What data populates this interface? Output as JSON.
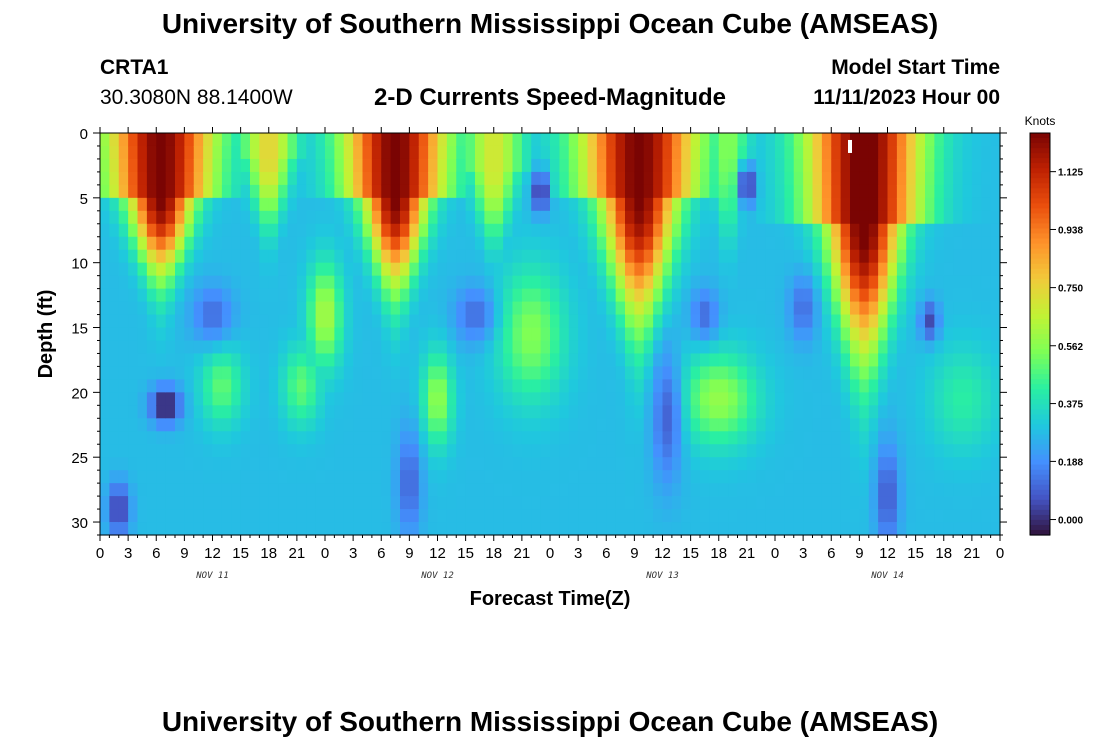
{
  "header": {
    "title": "University of Southern Mississippi Ocean Cube (AMSEAS)",
    "station": "CRTA1",
    "coords": "30.3080N  88.1400W",
    "subtitle": "2-D Currents Speed-Magnitude",
    "model_label": "Model Start Time",
    "model_date": "11/11/2023 Hour 00"
  },
  "footer": {
    "title": "University of Southern Mississippi Ocean Cube (AMSEAS)"
  },
  "colors": {
    "colormap": [
      "#30123b",
      "#4454c4",
      "#4490fe",
      "#1fc8de",
      "#29efa2",
      "#7dff56",
      "#c1f334",
      "#f1ca3a",
      "#fe922a",
      "#ea4f0d",
      "#be2102",
      "#7a0403"
    ]
  },
  "chart_data": {
    "type": "heatmap",
    "title": "2-D Currents Speed-Magnitude",
    "xlabel": "Forecast Time(Z)",
    "ylabel": "Depth (ft)",
    "xlim": [
      0,
      96
    ],
    "ylim": [
      0,
      31
    ],
    "x_tick_labels": [
      "0",
      "3",
      "6",
      "9",
      "12",
      "15",
      "18",
      "21",
      "0",
      "3",
      "6",
      "9",
      "12",
      "15",
      "18",
      "21",
      "0",
      "3",
      "6",
      "9",
      "12",
      "15",
      "18",
      "21",
      "0",
      "3",
      "6",
      "9",
      "12",
      "15",
      "18",
      "21",
      "0"
    ],
    "day_labels": [
      "NOV 11",
      "NOV 12",
      "NOV 13",
      "NOV 14"
    ],
    "y_ticks": [
      0,
      5,
      10,
      15,
      20,
      25,
      30
    ],
    "colorbar": {
      "unit": "Knots",
      "range": [
        -0.05,
        1.25
      ],
      "tick_values": [
        0.0,
        0.188,
        0.375,
        0.562,
        0.75,
        0.938,
        1.125
      ],
      "tick_labels": [
        "0.000",
        "0.188",
        "0.375",
        "0.562",
        "0.750",
        "0.938",
        "1.125"
      ]
    },
    "description_of_field": "Surface currents strong (>1.1 kn) near hours 4-9, 28-34, 52-58, 78-84; decay with depth into cone shapes; mid-depth maxima near 20 ft between surface peaks.",
    "field_spec": {
      "surface_peaks": [
        {
          "t": 6.5,
          "a": 1.25,
          "w": 4.6,
          "shallow": 5,
          "deep": 12,
          "widen": 1.6
        },
        {
          "t": 31.5,
          "a": 1.25,
          "w": 4.4,
          "shallow": 5,
          "deep": 13,
          "widen": 1.6
        },
        {
          "t": 57.5,
          "a": 1.25,
          "w": 5.0,
          "shallow": 5,
          "deep": 16,
          "widen": 1.6
        },
        {
          "t": 81.5,
          "a": 1.28,
          "w": 5.0,
          "shallow": 7,
          "deep": 19,
          "widen": 1.5
        },
        {
          "t": 18,
          "a": 0.75,
          "w": 2.8,
          "shallow": 2,
          "deep": 8,
          "widen": 1.0
        },
        {
          "t": 42,
          "a": 0.7,
          "w": 3.0,
          "shallow": 3,
          "deep": 9,
          "widen": 1.0
        },
        {
          "t": 67,
          "a": 0.55,
          "w": 2.2,
          "shallow": 2,
          "deep": 9,
          "widen": 1.0
        },
        {
          "t": 94,
          "a": 0.25,
          "w": 3.0,
          "shallow": 2,
          "deep": 8,
          "widen": 1.0
        }
      ],
      "mid_blobs": [
        {
          "t": 24,
          "d": 14,
          "a": 0.62,
          "wt": 1.8,
          "wd": 4
        },
        {
          "t": 36,
          "d": 20.5,
          "a": 0.58,
          "wt": 1.6,
          "wd": 3.5
        },
        {
          "t": 46,
          "d": 15.5,
          "a": 0.55,
          "wt": 3.5,
          "wd": 5
        },
        {
          "t": 13,
          "d": 19.5,
          "a": 0.5,
          "wt": 2.2,
          "wd": 3
        },
        {
          "t": 21.5,
          "d": 19.5,
          "a": 0.5,
          "wt": 2.0,
          "wd": 3
        },
        {
          "t": 66,
          "d": 20.5,
          "a": 0.58,
          "wt": 4.0,
          "wd": 3.5
        },
        {
          "t": 92,
          "d": 20.5,
          "a": 0.42,
          "wt": 3.5,
          "wd": 4
        }
      ],
      "minima": [
        {
          "t": 7,
          "d": 21,
          "wt": 1.6,
          "wd": 1.4,
          "v": -0.05
        },
        {
          "t": 47,
          "d": 4.5,
          "wt": 0.9,
          "wd": 1.6,
          "v": -0.02
        },
        {
          "t": 69,
          "d": 4,
          "wt": 0.9,
          "wd": 1.5,
          "v": -0.02
        },
        {
          "t": 2,
          "d": 29,
          "wt": 1.2,
          "wd": 2.0,
          "v": 0.02
        },
        {
          "t": 88.5,
          "d": 14.5,
          "wt": 1.0,
          "wd": 1.5,
          "v": 0.05
        },
        {
          "t": 12,
          "d": 14,
          "wt": 2.2,
          "wd": 2.2,
          "v": 0.12
        },
        {
          "t": 40,
          "d": 14,
          "wt": 2.2,
          "wd": 2.2,
          "v": 0.12
        },
        {
          "t": 64.5,
          "d": 14,
          "wt": 1.5,
          "wd": 2.0,
          "v": 0.12
        },
        {
          "t": 75,
          "d": 13.5,
          "wt": 1.5,
          "wd": 2.5,
          "v": 0.12
        },
        {
          "t": 60.5,
          "d": 22,
          "wt": 1.6,
          "wd": 5,
          "v": 0.1
        },
        {
          "t": 84,
          "d": 28,
          "wt": 1.3,
          "wd": 4,
          "v": 0.08
        },
        {
          "t": 33,
          "d": 27,
          "wt": 1.3,
          "wd": 4,
          "v": 0.1
        }
      ],
      "base": 0.28
    },
    "marker": {
      "t": 80,
      "d": 1
    }
  }
}
